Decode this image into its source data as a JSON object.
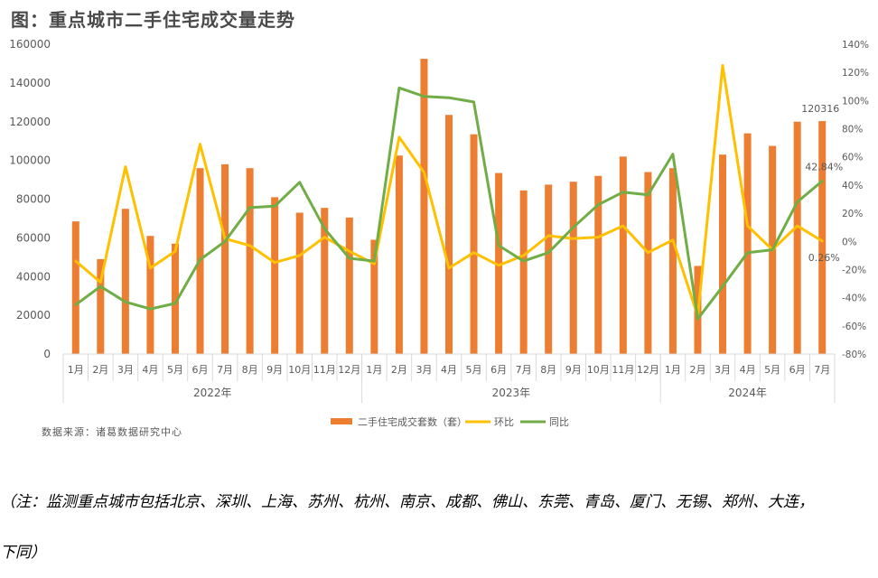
{
  "figure_title": "图：重点城市二手住宅成交量走势",
  "source": "数据来源：诸葛数据研究中心",
  "note_line1": "（注：监测重点城市包括北京、深圳、上海、苏州、杭州、南京、成都、佛山、东莞、青岛、厦门、无锡、郑州、大连，",
  "note_line2": "下同）",
  "colors": {
    "bar": "#ED7D31",
    "mom": "#FFC000",
    "yoy": "#70AD47",
    "axis": "#D9D9D9",
    "text": "#595959"
  },
  "chart_data": {
    "type": "bar+line",
    "categories": [
      "1月",
      "2月",
      "3月",
      "4月",
      "5月",
      "6月",
      "7月",
      "8月",
      "9月",
      "10月",
      "11月",
      "12月",
      "1月",
      "2月",
      "3月",
      "4月",
      "5月",
      "6月",
      "7月",
      "8月",
      "9月",
      "10月",
      "11月",
      "12月",
      "1月",
      "2月",
      "3月",
      "4月",
      "5月",
      "6月",
      "7月"
    ],
    "years": [
      {
        "label": "2022年",
        "span": 12
      },
      {
        "label": "2023年",
        "span": 12
      },
      {
        "label": "2024年",
        "span": 7
      }
    ],
    "left_ylim": [
      0,
      160000
    ],
    "left_ticks": [
      "0",
      "20000",
      "40000",
      "60000",
      "80000",
      "100000",
      "120000",
      "140000",
      "160000"
    ],
    "right_ylim": [
      -0.8,
      1.4
    ],
    "right_ticks": [
      "-80%",
      "-60%",
      "-40%",
      "-20%",
      "0%",
      "20%",
      "40%",
      "60%",
      "80%",
      "100%",
      "120%",
      "140%"
    ],
    "series": [
      {
        "name": "二手住宅成交套数（套）",
        "type": "bar",
        "axis": "left",
        "values": [
          68500,
          49000,
          75000,
          61000,
          57000,
          96000,
          98000,
          96000,
          81000,
          73000,
          75500,
          70500,
          59000,
          102500,
          152500,
          123500,
          113500,
          93500,
          84500,
          87500,
          89000,
          92000,
          102000,
          94000,
          96000,
          45500,
          103000,
          114000,
          107500,
          120000,
          120316
        ]
      },
      {
        "name": "环比",
        "type": "line",
        "axis": "right",
        "values": [
          -0.14,
          -0.29,
          0.53,
          -0.19,
          -0.07,
          0.69,
          0.02,
          -0.03,
          -0.15,
          -0.1,
          0.03,
          -0.07,
          -0.16,
          0.74,
          0.49,
          -0.19,
          -0.08,
          -0.17,
          -0.1,
          0.04,
          0.02,
          0.03,
          0.11,
          -0.08,
          0.01,
          -0.53,
          1.25,
          0.11,
          -0.06,
          0.11,
          0.0026
        ]
      },
      {
        "name": "同比",
        "type": "line",
        "axis": "right",
        "values": [
          -0.45,
          -0.32,
          -0.43,
          -0.48,
          -0.44,
          -0.13,
          0.0,
          0.24,
          0.25,
          0.42,
          0.09,
          -0.12,
          -0.14,
          1.09,
          1.03,
          1.02,
          0.99,
          -0.03,
          -0.14,
          -0.08,
          0.1,
          0.26,
          0.35,
          0.33,
          0.62,
          -0.55,
          -0.32,
          -0.08,
          -0.06,
          0.28,
          0.4284
        ]
      }
    ],
    "data_labels": [
      {
        "text": "120316",
        "series": 0,
        "index": 30
      },
      {
        "text": "42.84%",
        "series": 2,
        "index": 30
      },
      {
        "text": "0.26%",
        "series": 1,
        "index": 30
      }
    ],
    "legend_position": "bottom",
    "grid": false
  }
}
